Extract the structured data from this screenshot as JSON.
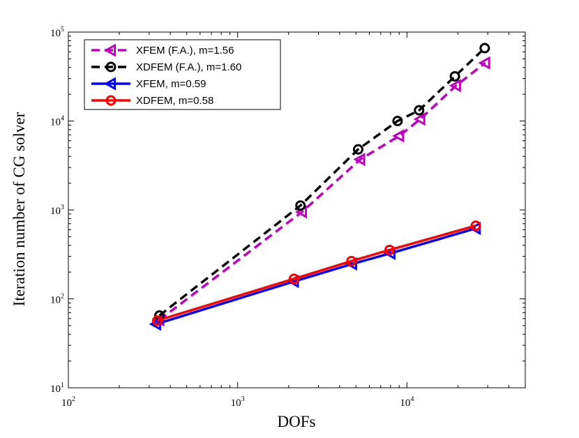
{
  "chart_data": {
    "type": "line",
    "xscale": "log",
    "yscale": "log",
    "xlabel": "DOFs",
    "ylabel": "Iteration number of CG solver",
    "xlim": [
      100,
      50000
    ],
    "ylim": [
      10,
      100000
    ],
    "x_ticks": [
      {
        "base": "10",
        "exp": "2",
        "value": 100
      },
      {
        "base": "10",
        "exp": "3",
        "value": 1000
      },
      {
        "base": "10",
        "exp": "4",
        "value": 10000
      }
    ],
    "y_ticks": [
      {
        "base": "10",
        "exp": "1",
        "value": 10
      },
      {
        "base": "10",
        "exp": "2",
        "value": 100
      },
      {
        "base": "10",
        "exp": "3",
        "value": 1000
      },
      {
        "base": "10",
        "exp": "4",
        "value": 10000
      },
      {
        "base": "10",
        "exp": "5",
        "value": 100000
      }
    ],
    "legend_position": "top-left",
    "series": [
      {
        "name": "XFEM (F.A.), m=1.56",
        "color": "#bf00bf",
        "dash": "dashed",
        "marker": "triangle-left",
        "x": [
          345,
          2400,
          5300,
          9000,
          12000,
          19500,
          29000
        ],
        "y": [
          58,
          950,
          3700,
          6800,
          10500,
          25000,
          45000
        ]
      },
      {
        "name": "XDFEM (F.A.), m=1.60",
        "color": "#000000",
        "dash": "dashed",
        "marker": "circle",
        "x": [
          345,
          2350,
          5150,
          8800,
          11800,
          19200,
          28800
        ],
        "y": [
          65,
          1120,
          4800,
          10000,
          13200,
          31800,
          66000
        ]
      },
      {
        "name": "XFEM, m=0.59",
        "color": "#0000ff",
        "dash": "solid",
        "marker": "triangle-left",
        "x": [
          330,
          2150,
          4750,
          8000,
          25500
        ],
        "y": [
          52,
          157,
          247,
          325,
          620
        ]
      },
      {
        "name": "XDFEM, m=0.58",
        "color": "#ff0000",
        "dash": "solid",
        "marker": "circle",
        "x": [
          335,
          2150,
          4700,
          7900,
          25500
        ],
        "y": [
          57,
          168,
          266,
          355,
          665
        ]
      }
    ]
  }
}
